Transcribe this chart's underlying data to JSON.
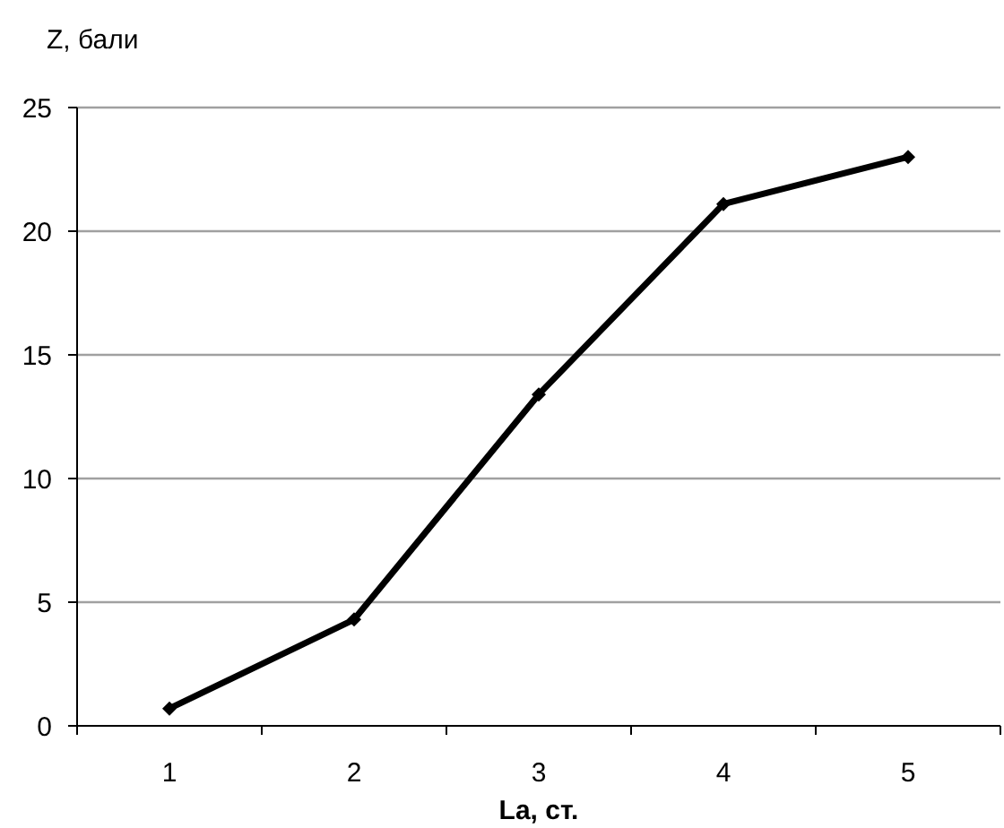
{
  "chart_data": {
    "type": "line",
    "ylabel": "Z, бали",
    "xlabel": "La, ст.",
    "categories": [
      "1",
      "2",
      "3",
      "4",
      "5"
    ],
    "series": [
      {
        "color": "#000000",
        "values": [
          0.7,
          4.3,
          13.4,
          21.1,
          23.0
        ]
      }
    ],
    "ylim": [
      0,
      25
    ],
    "yticks": [
      0,
      5,
      10,
      15,
      20,
      25
    ],
    "grid": "y",
    "marker": "diamond",
    "line_style": "solid"
  }
}
